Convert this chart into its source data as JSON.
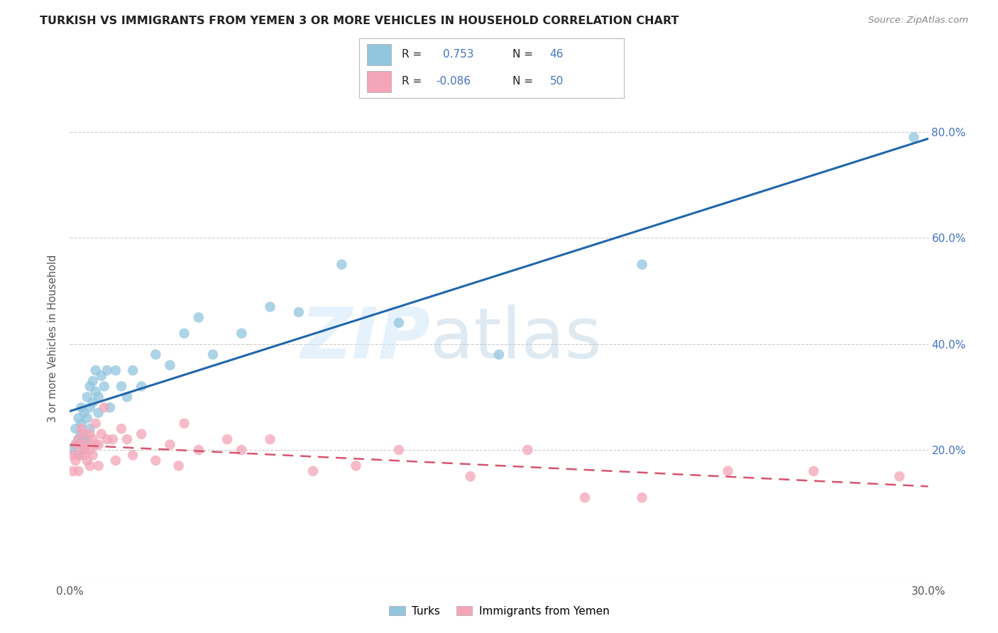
{
  "title": "TURKISH VS IMMIGRANTS FROM YEMEN 3 OR MORE VEHICLES IN HOUSEHOLD CORRELATION CHART",
  "source": "Source: ZipAtlas.com",
  "ylabel": "3 or more Vehicles in Household",
  "xlim": [
    0.0,
    0.3
  ],
  "ylim": [
    -0.05,
    0.87
  ],
  "xtick_positions": [
    0.0,
    0.05,
    0.1,
    0.15,
    0.2,
    0.25,
    0.3
  ],
  "xticklabels": [
    "0.0%",
    "",
    "",
    "",
    "",
    "",
    "30.0%"
  ],
  "ytick_right_positions": [
    0.2,
    0.4,
    0.6,
    0.8
  ],
  "ytick_right_labels": [
    "20.0%",
    "40.0%",
    "60.0%",
    "80.0%"
  ],
  "blue_R": "0.753",
  "blue_N": "46",
  "pink_R": "-0.086",
  "pink_N": "50",
  "blue_color": "#92c5de",
  "blue_line_color": "#2166ac",
  "pink_color": "#f4a5b8",
  "pink_line_color": "#d6546e",
  "background_color": "#ffffff",
  "grid_color": "#cccccc",
  "watermark_zip": "ZIP",
  "watermark_atlas": "atlas",
  "legend_label_blue": "Turks",
  "legend_label_pink": "Immigrants from Yemen",
  "blue_x": [
    0.001,
    0.002,
    0.002,
    0.003,
    0.003,
    0.003,
    0.004,
    0.004,
    0.004,
    0.005,
    0.005,
    0.005,
    0.006,
    0.006,
    0.006,
    0.007,
    0.007,
    0.007,
    0.008,
    0.008,
    0.009,
    0.009,
    0.01,
    0.01,
    0.011,
    0.012,
    0.013,
    0.014,
    0.016,
    0.018,
    0.02,
    0.022,
    0.025,
    0.03,
    0.035,
    0.04,
    0.045,
    0.05,
    0.06,
    0.07,
    0.08,
    0.095,
    0.115,
    0.15,
    0.2,
    0.295
  ],
  "blue_y": [
    0.2,
    0.24,
    0.21,
    0.26,
    0.22,
    0.19,
    0.28,
    0.25,
    0.23,
    0.27,
    0.22,
    0.2,
    0.3,
    0.26,
    0.22,
    0.32,
    0.28,
    0.24,
    0.33,
    0.29,
    0.35,
    0.31,
    0.3,
    0.27,
    0.34,
    0.32,
    0.35,
    0.28,
    0.35,
    0.32,
    0.3,
    0.35,
    0.32,
    0.38,
    0.36,
    0.42,
    0.45,
    0.38,
    0.42,
    0.47,
    0.46,
    0.55,
    0.44,
    0.38,
    0.55,
    0.79
  ],
  "pink_x": [
    0.001,
    0.001,
    0.002,
    0.002,
    0.003,
    0.003,
    0.003,
    0.004,
    0.004,
    0.005,
    0.005,
    0.005,
    0.006,
    0.006,
    0.007,
    0.007,
    0.007,
    0.008,
    0.008,
    0.009,
    0.009,
    0.01,
    0.01,
    0.011,
    0.012,
    0.013,
    0.015,
    0.016,
    0.018,
    0.02,
    0.022,
    0.025,
    0.03,
    0.035,
    0.038,
    0.04,
    0.045,
    0.055,
    0.06,
    0.07,
    0.085,
    0.1,
    0.115,
    0.14,
    0.16,
    0.18,
    0.2,
    0.23,
    0.26,
    0.29
  ],
  "pink_y": [
    0.19,
    0.16,
    0.21,
    0.18,
    0.22,
    0.19,
    0.16,
    0.24,
    0.21,
    0.2,
    0.23,
    0.19,
    0.21,
    0.18,
    0.23,
    0.2,
    0.17,
    0.22,
    0.19,
    0.21,
    0.25,
    0.21,
    0.17,
    0.23,
    0.28,
    0.22,
    0.22,
    0.18,
    0.24,
    0.22,
    0.19,
    0.23,
    0.18,
    0.21,
    0.17,
    0.25,
    0.2,
    0.22,
    0.2,
    0.22,
    0.16,
    0.17,
    0.2,
    0.15,
    0.2,
    0.11,
    0.11,
    0.16,
    0.16,
    0.15
  ]
}
